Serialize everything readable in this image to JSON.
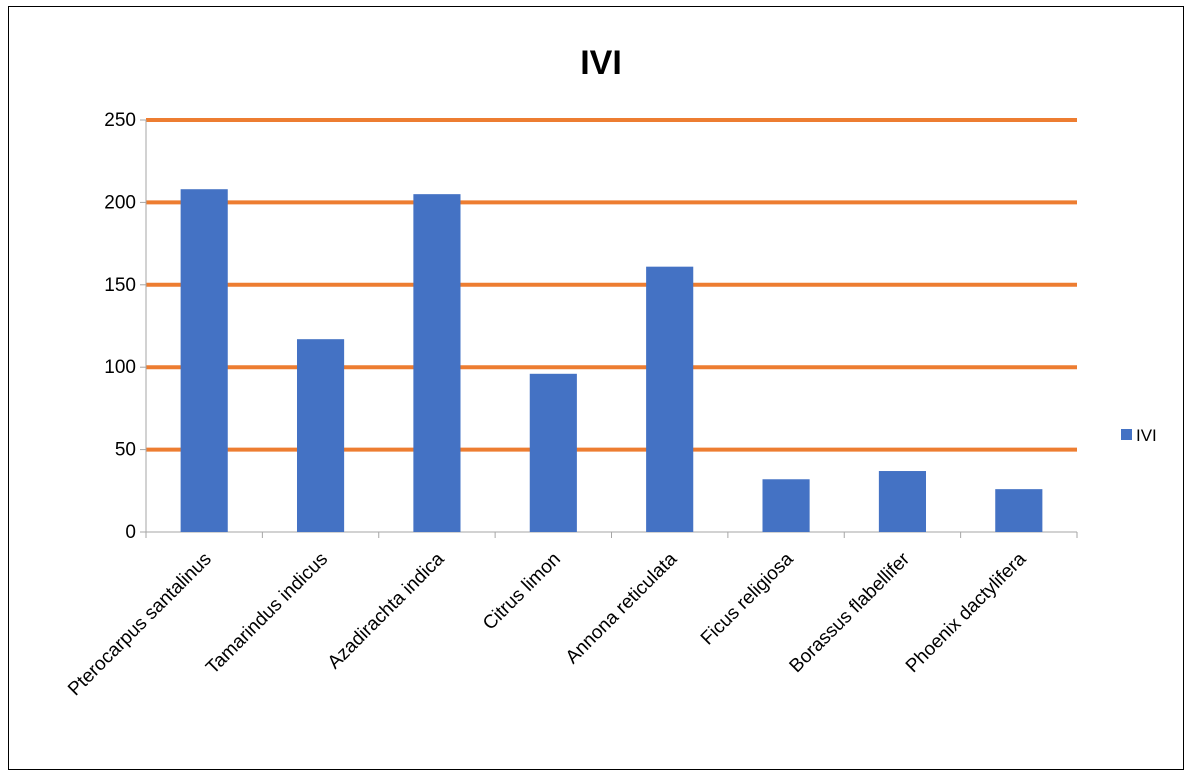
{
  "chart_data": {
    "type": "bar",
    "title": "IVI",
    "categories": [
      "Pterocarpus santalinus",
      "Tamarindus indicus",
      "Azadirachta indica",
      "Citrus limon",
      "Annona reticulata",
      "Ficus religiosa",
      "Borassus flabellifer",
      "Phoenix dactylifera"
    ],
    "series": [
      {
        "name": "IVI",
        "values": [
          208,
          117,
          205,
          96,
          161,
          32,
          37,
          26
        ]
      }
    ],
    "ylim": [
      0,
      250
    ],
    "yticks": [
      0,
      50,
      100,
      150,
      200,
      250
    ],
    "xlabel": "",
    "ylabel": "",
    "grid": true,
    "legend": "right",
    "colors": {
      "bar": "#4472C4",
      "grid": "#ED7D31",
      "axis": "#A6A6A6",
      "text": "#000000"
    }
  }
}
